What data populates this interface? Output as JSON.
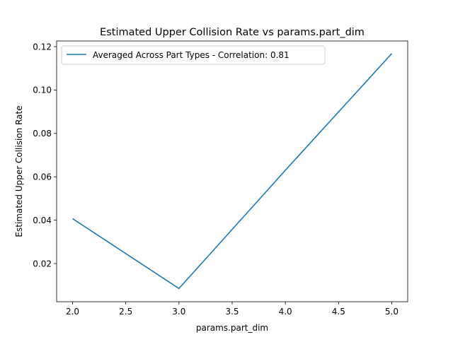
{
  "chart_data": {
    "type": "line",
    "title": "Estimated Upper Collision Rate vs params.part_dim",
    "xlabel": "params.part_dim",
    "ylabel": "Estimated Upper Collision Rate",
    "xlim": [
      1.85,
      5.15
    ],
    "ylim": [
      0.0024,
      0.1226
    ],
    "x_ticks": [
      2.0,
      2.5,
      3.0,
      3.5,
      4.0,
      4.5,
      5.0
    ],
    "x_tick_labels": [
      "2.0",
      "2.5",
      "3.0",
      "3.5",
      "4.0",
      "4.5",
      "5.0"
    ],
    "y_ticks": [
      0.02,
      0.04,
      0.06,
      0.08,
      0.1,
      0.12
    ],
    "y_tick_labels": [
      "0.02",
      "0.04",
      "0.06",
      "0.08",
      "0.10",
      "0.12"
    ],
    "grid": false,
    "legend_position": "top-left",
    "series": [
      {
        "name": "Averaged Across Part Types - Correlation: 0.81",
        "color": "#1f77b4",
        "x": [
          2.0,
          3.0,
          4.0,
          5.0
        ],
        "y": [
          0.0407,
          0.0085,
          0.063,
          0.1168
        ]
      }
    ]
  }
}
